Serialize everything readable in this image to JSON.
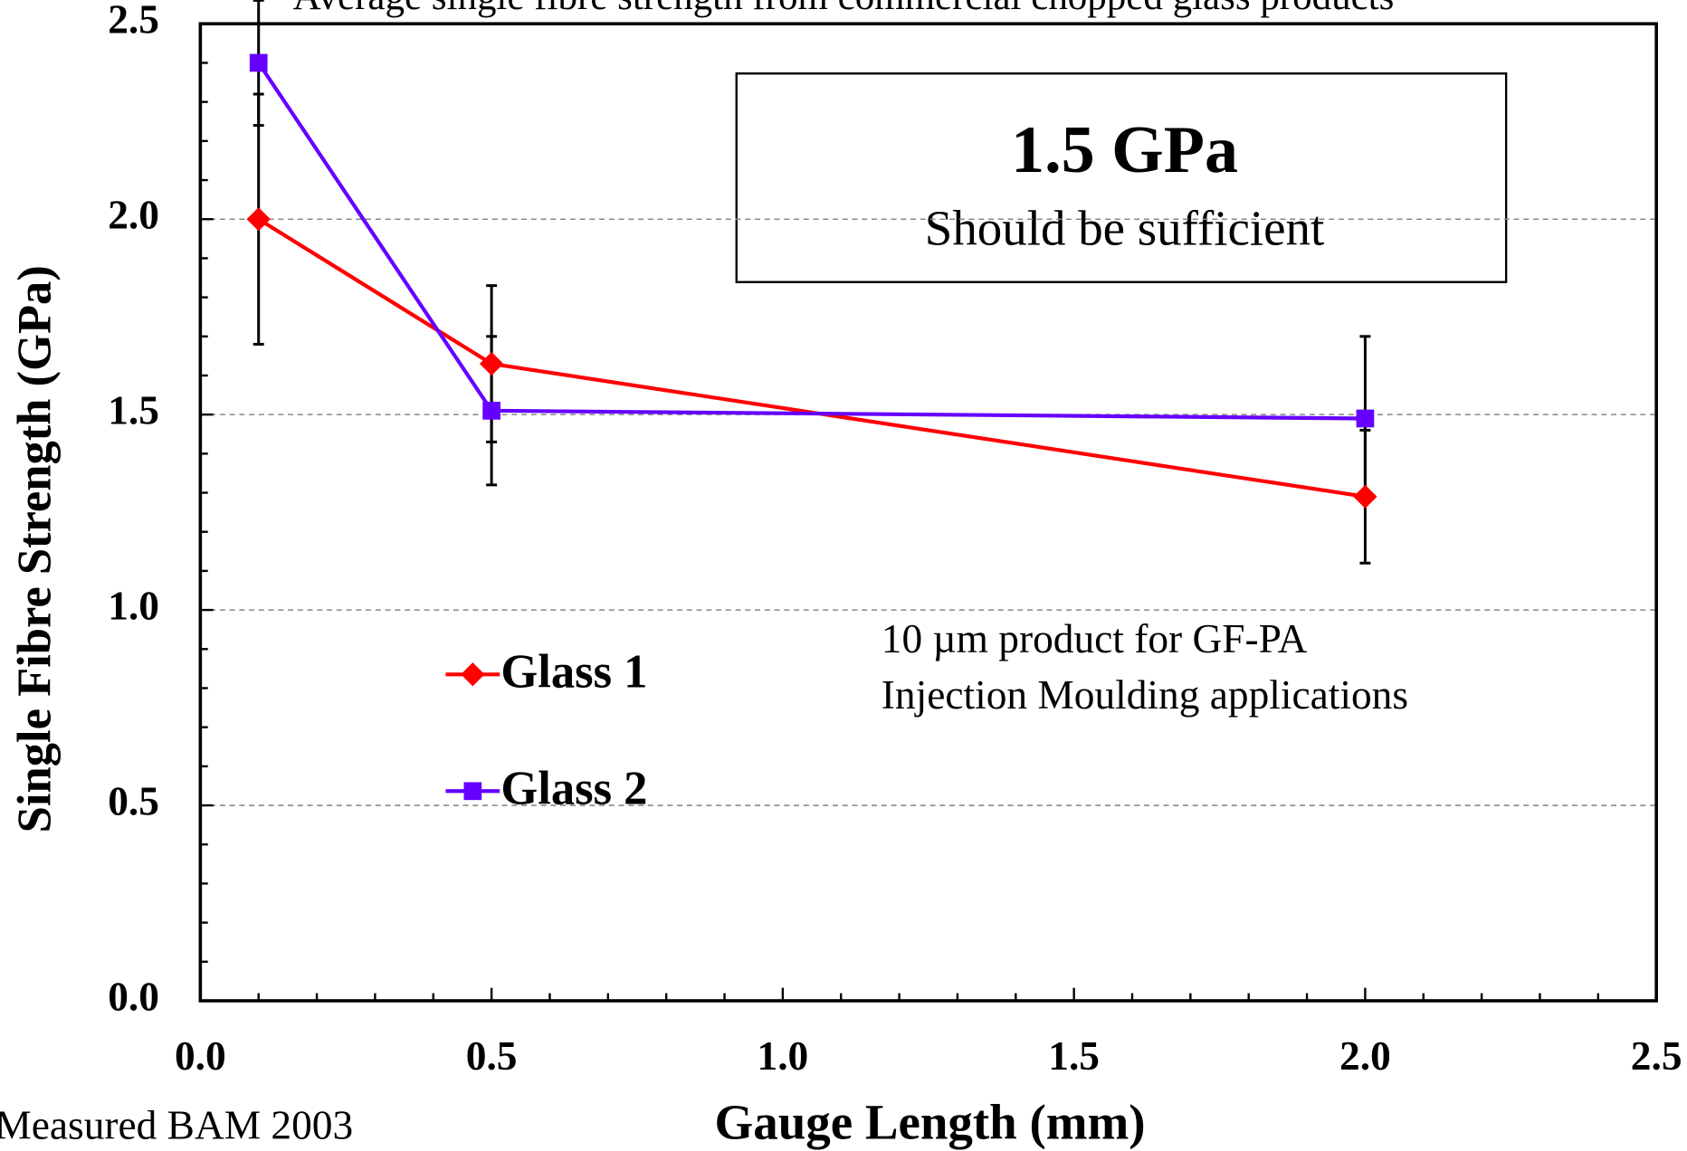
{
  "chart_data": {
    "type": "line",
    "title": "Average single fibre strength from commercial chopped glass products",
    "xlabel": "Gauge Length (mm)",
    "ylabel": "Single Fibre Strength (GPa)",
    "xlim": [
      0,
      2.5
    ],
    "ylim": [
      0,
      2.5
    ],
    "xticks": [
      {
        "value": 0,
        "label": "0.0"
      },
      {
        "value": 0.5,
        "label": "0.5"
      },
      {
        "value": 1,
        "label": "1.0"
      },
      {
        "value": 1.5,
        "label": "1.5"
      },
      {
        "value": 2,
        "label": "2.0"
      },
      {
        "value": 2.5,
        "label": "2.5"
      }
    ],
    "yticks": [
      {
        "value": 0,
        "label": "0.0"
      },
      {
        "value": 0.5,
        "label": "0.5"
      },
      {
        "value": 1,
        "label": "1.0"
      },
      {
        "value": 1.5,
        "label": "1.5"
      },
      {
        "value": 2,
        "label": "2.0"
      },
      {
        "value": 2.5,
        "label": "2.5"
      }
    ],
    "grid": true,
    "x": [
      0.1,
      0.5,
      2.0
    ],
    "series": [
      {
        "name": "Glass 1",
        "color": "#ff0000",
        "marker": "diamond",
        "values": [
          2.0,
          1.63,
          1.29
        ],
        "errors": [
          0.32,
          0.2,
          0.17
        ]
      },
      {
        "name": "Glass 2",
        "color": "#6600ff",
        "marker": "square",
        "values": [
          2.4,
          1.51,
          1.49
        ],
        "errors": [
          0.16,
          0.19,
          0.21
        ]
      }
    ],
    "annotations": [
      "1.5 GPa",
      "Should be sufficient",
      "10 µm product for GF-PA",
      "Injection Moulding applications"
    ],
    "footnote": "Measured BAM 2003"
  }
}
